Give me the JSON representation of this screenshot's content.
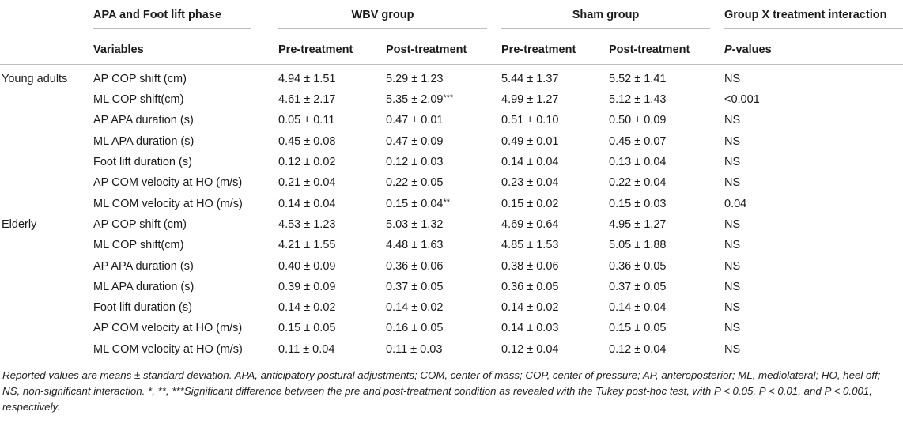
{
  "header": {
    "col1_title": "APA and Foot lift phase",
    "wbv_title": "WBV group",
    "sham_title": "Sham group",
    "interaction_title": "Group X treatment interaction",
    "variables_label": "Variables",
    "pre_label": "Pre-treatment",
    "post_label": "Post-treatment",
    "pvalue_p": "P",
    "pvalue_rest": "-values"
  },
  "groups": [
    {
      "name": "Young adults",
      "rows": [
        {
          "variable": "AP COP shift (cm)",
          "wbv_pre": "4.94 ± 1.51",
          "wbv_post": "5.29 ± 1.23",
          "wbv_post_sig": "",
          "sham_pre": "5.44 ± 1.37",
          "sham_post": "5.52 ± 1.41",
          "p": "NS"
        },
        {
          "variable": "ML COP shift(cm)",
          "wbv_pre": "4.61 ± 2.17",
          "wbv_post": "5.35 ± 2.09",
          "wbv_post_sig": "***",
          "sham_pre": "4.99 ± 1.27",
          "sham_post": "5.12 ± 1.43",
          "p": "<0.001"
        },
        {
          "variable": "AP APA duration (s)",
          "wbv_pre": "0.05 ± 0.11",
          "wbv_post": "0.47 ± 0.01",
          "wbv_post_sig": "",
          "sham_pre": "0.51 ± 0.10",
          "sham_post": "0.50 ± 0.09",
          "p": "NS"
        },
        {
          "variable": "ML APA duration (s)",
          "wbv_pre": "0.45 ± 0.08",
          "wbv_post": "0.47 ± 0.09",
          "wbv_post_sig": "",
          "sham_pre": "0.49 ± 0.01",
          "sham_post": "0.45 ± 0.07",
          "p": "NS"
        },
        {
          "variable": "Foot lift duration (s)",
          "wbv_pre": "0.12 ± 0.02",
          "wbv_post": "0.12 ± 0.03",
          "wbv_post_sig": "",
          "sham_pre": "0.14 ± 0.04",
          "sham_post": "0.13 ± 0.04",
          "p": "NS"
        },
        {
          "variable": "AP COM velocity at HO (m/s)",
          "wbv_pre": "0.21 ± 0.04",
          "wbv_post": "0.22 ± 0.05",
          "wbv_post_sig": "",
          "sham_pre": "0.23 ± 0.04",
          "sham_post": "0.22 ± 0.04",
          "p": "NS"
        },
        {
          "variable": "ML COM velocity at HO (m/s)",
          "wbv_pre": "0.14 ± 0.04",
          "wbv_post": "0.15 ± 0.04",
          "wbv_post_sig": "**",
          "sham_pre": "0.15 ± 0.02",
          "sham_post": "0.15 ± 0.03",
          "p": "0.04"
        }
      ]
    },
    {
      "name": "Elderly",
      "rows": [
        {
          "variable": "AP COP shift (cm)",
          "wbv_pre": "4.53 ± 1.23",
          "wbv_post": "5.03 ± 1.32",
          "wbv_post_sig": "",
          "sham_pre": "4.69 ± 0.64",
          "sham_post": "4.95 ± 1.27",
          "p": "NS"
        },
        {
          "variable": "ML COP shift(cm)",
          "wbv_pre": "4.21 ± 1.55",
          "wbv_post": "4.48 ± 1.63",
          "wbv_post_sig": "",
          "sham_pre": "4.85 ± 1.53",
          "sham_post": "5.05 ± 1.88",
          "p": "NS"
        },
        {
          "variable": "AP APA duration (s)",
          "wbv_pre": "0.40 ± 0.09",
          "wbv_post": "0.36 ± 0.06",
          "wbv_post_sig": "",
          "sham_pre": "0.38 ± 0.06",
          "sham_post": "0.36 ± 0.05",
          "p": "NS"
        },
        {
          "variable": "ML APA duration (s)",
          "wbv_pre": "0.39 ± 0.09",
          "wbv_post": "0.37 ± 0.05",
          "wbv_post_sig": "",
          "sham_pre": "0.36 ± 0.05",
          "sham_post": "0.37 ± 0.05",
          "p": "NS"
        },
        {
          "variable": "Foot lift duration (s)",
          "wbv_pre": "0.14 ± 0.02",
          "wbv_post": "0.14 ± 0.02",
          "wbv_post_sig": "",
          "sham_pre": "0.14 ± 0.02",
          "sham_post": "0.14 ± 0.04",
          "p": "NS"
        },
        {
          "variable": "AP COM velocity at HO (m/s)",
          "wbv_pre": "0.15 ± 0.05",
          "wbv_post": "0.16 ± 0.05",
          "wbv_post_sig": "",
          "sham_pre": "0.14 ± 0.03",
          "sham_post": "0.15 ± 0.05",
          "p": "NS"
        },
        {
          "variable": "ML COM velocity at HO (m/s)",
          "wbv_pre": "0.11 ± 0.04",
          "wbv_post": "0.11 ± 0.03",
          "wbv_post_sig": "",
          "sham_pre": "0.12 ± 0.04",
          "sham_post": "0.12 ± 0.04",
          "p": "NS"
        }
      ]
    }
  ],
  "footnote": "Reported values are means ± standard deviation. APA, anticipatory postural adjustments; COM, center of mass; COP, center of pressure; AP, anteroposterior; ML, mediolateral; HO, heel off; NS, non-significant interaction. *, **, ***Significant difference between the pre and post-treatment condition as revealed with the Tukey post-hoc test, with P < 0.05, P < 0.01, and P < 0.001, respectively."
}
